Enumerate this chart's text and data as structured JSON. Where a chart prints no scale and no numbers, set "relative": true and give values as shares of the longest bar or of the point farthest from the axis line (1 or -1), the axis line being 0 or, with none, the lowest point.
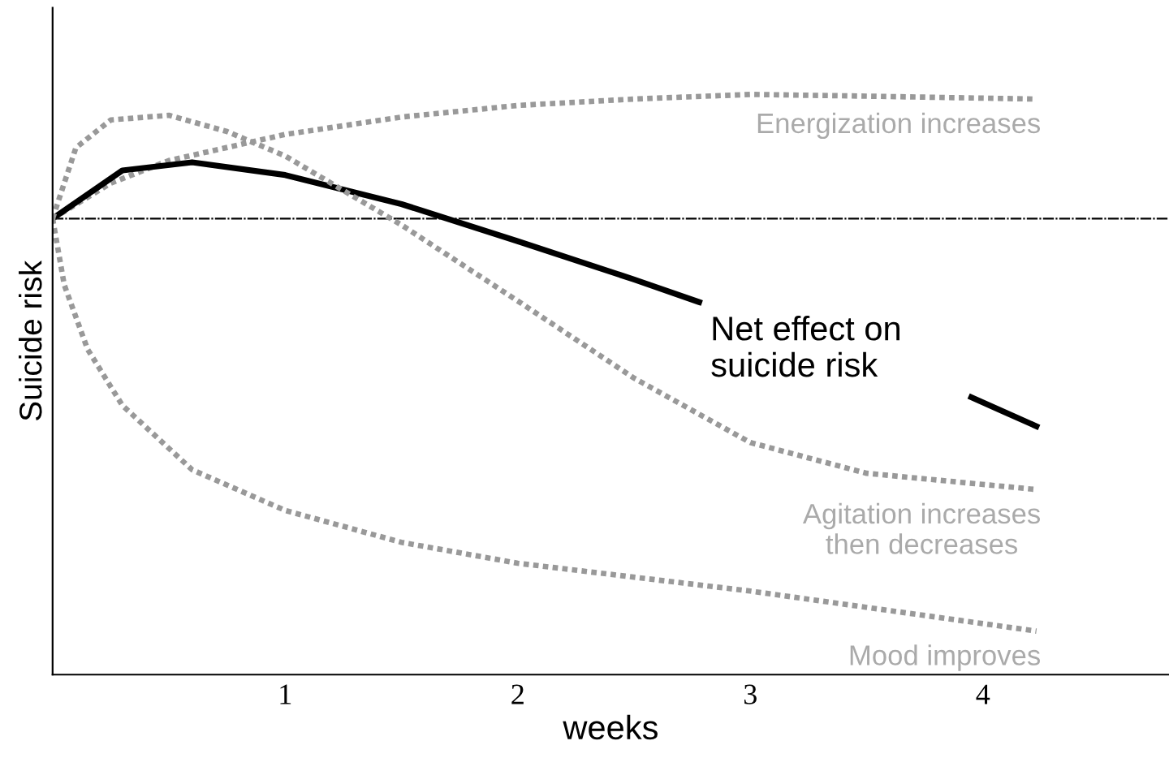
{
  "chart_data": {
    "type": "line",
    "relative": true,
    "xlabel": "weeks",
    "ylabel": "Suicide risk",
    "xlim": [
      0,
      4.8
    ],
    "xticks": [
      1,
      2,
      3,
      4
    ],
    "grid": false,
    "marker": "none",
    "ref_lines": [
      {
        "axis": "y",
        "value": 0.786,
        "color": "#000000",
        "line_style": "dashed"
      }
    ],
    "series": [
      {
        "name": "Energization increases",
        "color": "#999999",
        "line_style": "dotted",
        "x": [
          0,
          0.25,
          0.5,
          1,
          1.5,
          2,
          2.5,
          3,
          3.5,
          4.23
        ],
        "values": [
          0.786,
          0.847,
          0.886,
          0.931,
          0.961,
          0.981,
          0.992,
          1.0,
          0.997,
          0.992
        ]
      },
      {
        "name": "Net effect on\nsuicide risk",
        "color": "#000000",
        "line_style": "solid",
        "x": [
          0,
          0.3,
          0.6,
          1,
          1.5,
          2,
          2.5,
          2.78,
          3.4,
          3.95,
          4.23
        ],
        "values": [
          0.786,
          0.869,
          0.883,
          0.861,
          0.811,
          0.747,
          0.681,
          0.642,
          null,
          0.478,
          0.428
        ]
      },
      {
        "name": "Agitation increases\nthen decreases",
        "color": "#999999",
        "line_style": "dotted",
        "x": [
          0,
          0.1,
          0.25,
          0.5,
          0.75,
          1,
          1.5,
          2,
          2.5,
          3,
          3.5,
          4.23
        ],
        "values": [
          0.786,
          0.908,
          0.956,
          0.964,
          0.936,
          0.894,
          0.775,
          0.644,
          0.511,
          0.4,
          0.347,
          0.319
        ]
      },
      {
        "name": "Mood improves",
        "color": "#999999",
        "line_style": "dotted",
        "x": [
          0,
          0.05,
          0.15,
          0.3,
          0.6,
          1,
          1.5,
          2,
          3,
          4.23
        ],
        "values": [
          0.786,
          0.672,
          0.561,
          0.464,
          0.353,
          0.283,
          0.228,
          0.192,
          0.144,
          0.075
        ]
      }
    ]
  }
}
